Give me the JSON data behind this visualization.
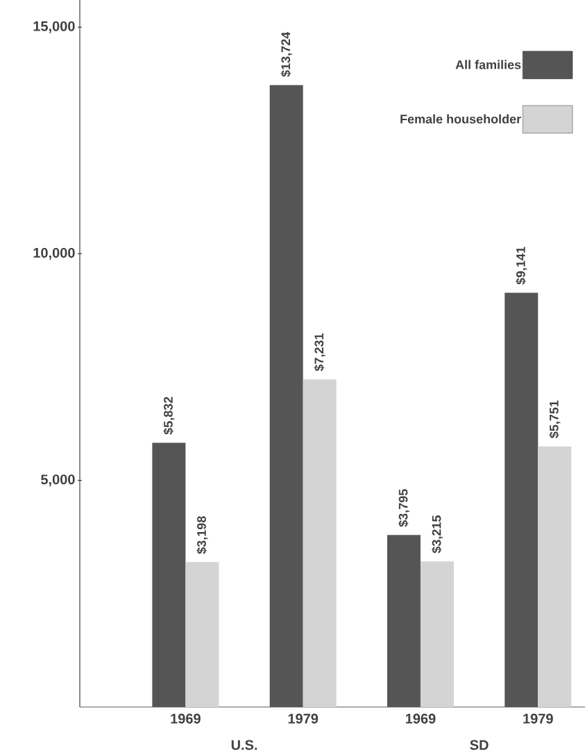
{
  "chart_data": {
    "type": "bar",
    "categories": [
      "1969",
      "1979",
      "1969",
      "1979"
    ],
    "series": [
      {
        "name": "All families",
        "color": "#555555",
        "values": [
          5832,
          13724,
          3795,
          9141
        ],
        "value_labels": [
          "$5,832",
          "$13,724",
          "$3,795",
          "$9,141"
        ]
      },
      {
        "name": "Female householder",
        "color": "#d4d4d4",
        "values": [
          3198,
          7231,
          3215,
          5751
        ],
        "value_labels": [
          "$3,198",
          "$7,231",
          "$3,215",
          "$5,751"
        ]
      }
    ],
    "ylim": [
      0,
      15600
    ],
    "yticks": [
      {
        "value": 5000,
        "label": "5,000"
      },
      {
        "value": 10000,
        "label": "10,000"
      },
      {
        "value": 15000,
        "label": "15,000"
      }
    ],
    "annotations": [
      "U.S.",
      "SD"
    ],
    "legend": "top right",
    "grid": false
  }
}
